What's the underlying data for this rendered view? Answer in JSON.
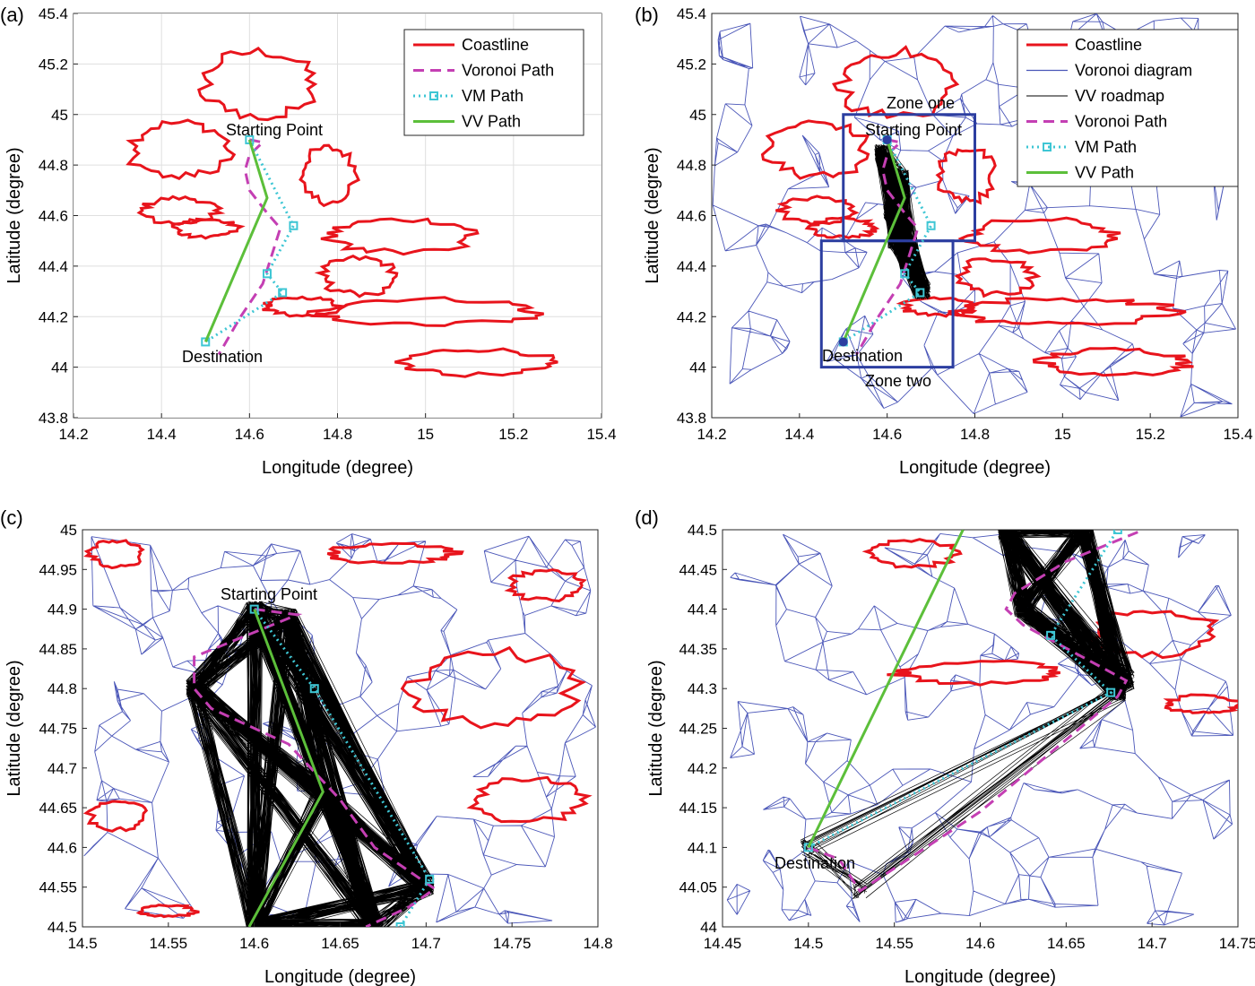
{
  "colors": {
    "coastline": "#e8141c",
    "voronoi": "#4a56b8",
    "vv_roadmap": "#000000",
    "voronoi_path": "#c43fb3",
    "vm_path": "#3ec6d4",
    "vv_path": "#5cbf3a",
    "zone_box": "#2c3ea0"
  },
  "chart_data": [
    {
      "type": "line",
      "panel": "(a)",
      "xlabel": "Longitude (degree)",
      "ylabel": "Latitude (degree)",
      "xlim": [
        14.2,
        15.4
      ],
      "ylim": [
        43.8,
        45.4
      ],
      "xticks": [
        "14.2",
        "14.4",
        "14.6",
        "14.8",
        "15",
        "15.2",
        "15.4"
      ],
      "yticks": [
        "43.8",
        "44",
        "44.2",
        "44.4",
        "44.6",
        "44.8",
        "45",
        "45.2",
        "45.4"
      ],
      "grid": true,
      "legend": {
        "position": "top-right",
        "entries": [
          "Coastline",
          "Voronoi Path",
          "VM Path",
          "VV Path"
        ]
      },
      "annotations": [
        {
          "text": "Starting Point",
          "x": 14.61,
          "y": 44.94
        },
        {
          "text": "Destination",
          "x": 14.5,
          "y": 44.06
        }
      ],
      "series": [
        {
          "name": "Voronoi Path",
          "x": [
            14.6,
            14.63,
            14.6,
            14.59,
            14.6,
            14.64,
            14.67,
            14.63,
            14.58,
            14.53
          ],
          "y": [
            44.9,
            44.89,
            44.84,
            44.78,
            44.7,
            44.61,
            44.55,
            44.33,
            44.2,
            44.05
          ]
        },
        {
          "name": "VM Path",
          "x": [
            14.6,
            14.7,
            14.64,
            14.675,
            14.5
          ],
          "y": [
            44.9,
            44.56,
            44.37,
            44.295,
            44.1
          ]
        },
        {
          "name": "VV Path",
          "x": [
            14.6,
            14.64,
            14.5
          ],
          "y": [
            44.9,
            44.67,
            44.1
          ]
        }
      ]
    },
    {
      "type": "line",
      "panel": "(b)",
      "xlabel": "Longitude (degree)",
      "ylabel": "Latitude (degree)",
      "xlim": [
        14.2,
        15.4
      ],
      "ylim": [
        43.8,
        45.4
      ],
      "xticks": [
        "14.2",
        "14.4",
        "14.6",
        "14.8",
        "15",
        "15.2",
        "15.4"
      ],
      "yticks": [
        "43.8",
        "44",
        "44.2",
        "44.4",
        "44.6",
        "44.8",
        "45",
        "45.2",
        "45.4"
      ],
      "grid": false,
      "legend": {
        "position": "top-right",
        "entries": [
          "Coastline",
          "Voronoi diagram",
          "VV roadmap",
          "Voronoi Path",
          "VM Path",
          "VV Path"
        ]
      },
      "annotations": [
        {
          "text": "Zone one",
          "x": 14.62,
          "y": 45.02
        },
        {
          "text": "Starting Point",
          "x": 14.6,
          "y": 44.92
        },
        {
          "text": "Destination",
          "x": 14.5,
          "y": 44.04
        },
        {
          "text": "Zone two",
          "x": 14.63,
          "y": 43.93
        }
      ],
      "zones": [
        {
          "name": "Zone one",
          "xlim": [
            14.5,
            14.8
          ],
          "ylim": [
            44.5,
            45.0
          ]
        },
        {
          "name": "Zone two",
          "xlim": [
            14.45,
            14.75
          ],
          "ylim": [
            44.0,
            44.5
          ]
        }
      ],
      "series": [
        {
          "name": "Voronoi Path",
          "x": [
            14.6,
            14.63,
            14.6,
            14.59,
            14.6,
            14.64,
            14.67,
            14.63,
            14.58,
            14.53
          ],
          "y": [
            44.9,
            44.89,
            44.84,
            44.78,
            44.7,
            44.61,
            44.55,
            44.33,
            44.2,
            44.05
          ]
        },
        {
          "name": "VM Path",
          "x": [
            14.6,
            14.7,
            14.64,
            14.675,
            14.5
          ],
          "y": [
            44.9,
            44.56,
            44.37,
            44.295,
            44.1
          ]
        },
        {
          "name": "VV Path",
          "x": [
            14.6,
            14.64,
            14.5
          ],
          "y": [
            44.9,
            44.67,
            44.1
          ]
        }
      ]
    },
    {
      "type": "line",
      "panel": "(c)",
      "xlabel": "Longitude (degree)",
      "ylabel": "Latitude (degree)",
      "xlim": [
        14.5,
        14.8
      ],
      "ylim": [
        44.5,
        45.0
      ],
      "xticks": [
        "14.5",
        "14.55",
        "14.6",
        "14.65",
        "14.7",
        "14.75",
        "14.8"
      ],
      "yticks": [
        "44.5",
        "44.55",
        "44.6",
        "44.65",
        "44.7",
        "44.75",
        "44.8",
        "44.85",
        "44.9",
        "44.95",
        "45"
      ],
      "grid": false,
      "annotations": [
        {
          "text": "Starting Point",
          "x": 14.62,
          "y": 44.91
        }
      ],
      "series": [
        {
          "name": "Voronoi Path",
          "x": [
            14.6,
            14.625,
            14.565,
            14.565,
            14.575,
            14.62,
            14.65,
            14.67,
            14.705,
            14.69,
            14.665
          ],
          "y": [
            44.9,
            44.893,
            44.84,
            44.8,
            44.775,
            44.73,
            44.66,
            44.6,
            44.548,
            44.525,
            44.5
          ]
        },
        {
          "name": "VM Path",
          "x": [
            14.6,
            14.635,
            14.702,
            14.685
          ],
          "y": [
            44.9,
            44.8,
            44.56,
            44.5
          ]
        },
        {
          "name": "VV Path",
          "x": [
            14.6,
            14.64,
            14.597
          ],
          "y": [
            44.9,
            44.67,
            44.5
          ]
        }
      ]
    },
    {
      "type": "line",
      "panel": "(d)",
      "xlabel": "Longitude (degree)",
      "ylabel": "Latitude (degree)",
      "xlim": [
        14.45,
        14.75
      ],
      "ylim": [
        44.0,
        44.5
      ],
      "xticks": [
        "14.45",
        "14.5",
        "14.55",
        "14.6",
        "14.65",
        "14.7",
        "14.75"
      ],
      "yticks": [
        "44",
        "44.05",
        "44.1",
        "44.15",
        "44.2",
        "44.25",
        "44.3",
        "44.35",
        "44.4",
        "44.45",
        "44.5"
      ],
      "grid": false,
      "annotations": [
        {
          "text": "Destination",
          "x": 14.5,
          "y": 44.07
        }
      ],
      "series": [
        {
          "name": "Voronoi Path",
          "x": [
            14.5,
            14.518,
            14.53,
            14.6,
            14.68,
            14.685,
            14.625,
            14.615,
            14.62,
            14.65,
            14.695
          ],
          "y": [
            44.1,
            44.085,
            44.045,
            44.145,
            44.29,
            44.31,
            44.38,
            44.4,
            44.42,
            44.46,
            44.5
          ]
        },
        {
          "name": "VM Path",
          "x": [
            14.5,
            14.676,
            14.641,
            14.68
          ],
          "y": [
            44.1,
            44.295,
            44.367,
            44.5
          ]
        },
        {
          "name": "VV Path",
          "x": [
            14.5,
            14.59
          ],
          "y": [
            44.1,
            44.5
          ]
        }
      ]
    }
  ]
}
